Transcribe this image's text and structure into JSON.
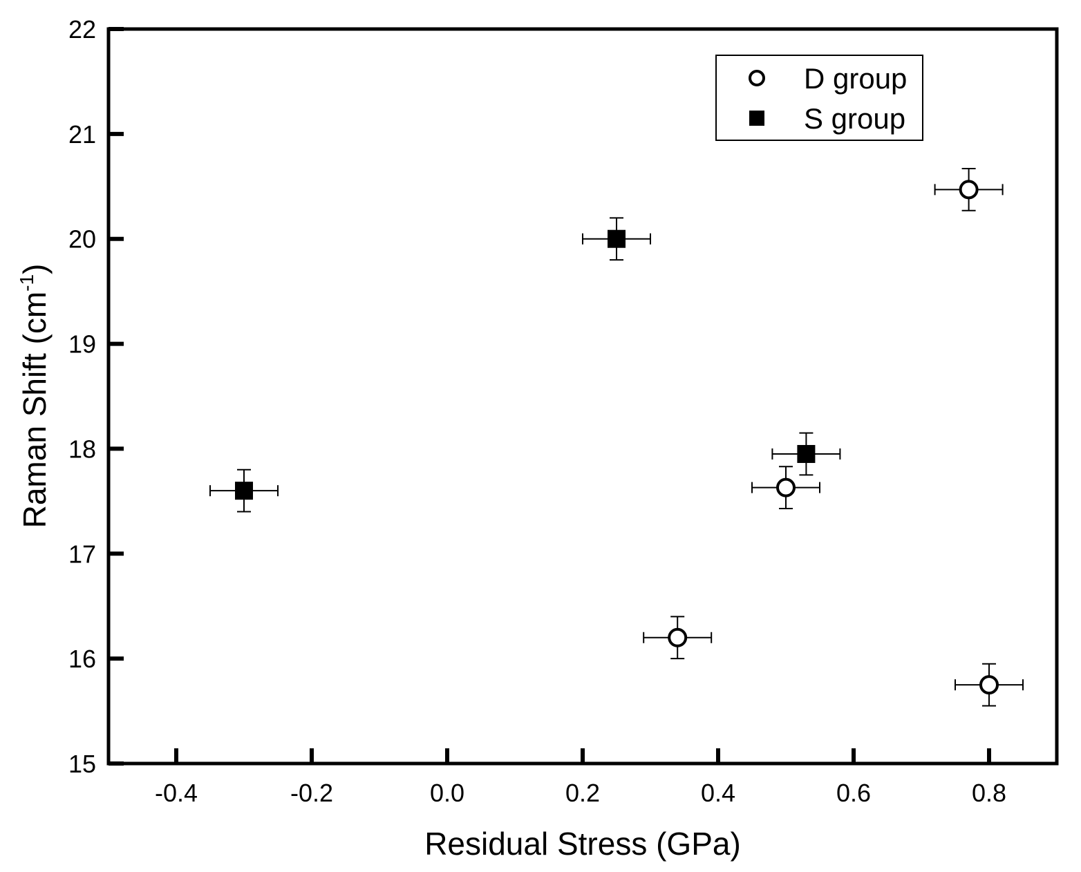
{
  "chart_data": {
    "type": "scatter",
    "xlabel": "Residual Stress (GPa)",
    "ylabel": "Raman Shift (cm",
    "ylabel_superscript": "-1",
    "ylabel_suffix": ")",
    "xlim": [
      -0.5,
      0.9
    ],
    "ylim": [
      15,
      22
    ],
    "x_ticks": [
      -0.4,
      -0.2,
      0.0,
      0.2,
      0.4,
      0.6,
      0.8
    ],
    "x_tick_labels": [
      "-0.4",
      "-0.2",
      "0.0",
      "0.2",
      "0.4",
      "0.6",
      "0.8"
    ],
    "y_ticks": [
      15,
      16,
      17,
      18,
      19,
      20,
      21,
      22
    ],
    "y_tick_labels": [
      "15",
      "16",
      "17",
      "18",
      "19",
      "20",
      "21",
      "22"
    ],
    "legend_position": "top-right",
    "series": [
      {
        "name": "D group",
        "marker": "open-circle",
        "points": [
          {
            "x": 0.34,
            "y": 16.2,
            "xerr": 0.05,
            "yerr": 0.2
          },
          {
            "x": 0.5,
            "y": 17.63,
            "xerr": 0.05,
            "yerr": 0.2
          },
          {
            "x": 0.77,
            "y": 20.47,
            "xerr": 0.05,
            "yerr": 0.2
          },
          {
            "x": 0.8,
            "y": 15.75,
            "xerr": 0.05,
            "yerr": 0.2
          }
        ]
      },
      {
        "name": "S group",
        "marker": "filled-square",
        "points": [
          {
            "x": -0.3,
            "y": 17.6,
            "xerr": 0.05,
            "yerr": 0.2
          },
          {
            "x": 0.25,
            "y": 20.0,
            "xerr": 0.05,
            "yerr": 0.2
          },
          {
            "x": 0.53,
            "y": 17.95,
            "xerr": 0.05,
            "yerr": 0.2
          }
        ]
      }
    ]
  }
}
